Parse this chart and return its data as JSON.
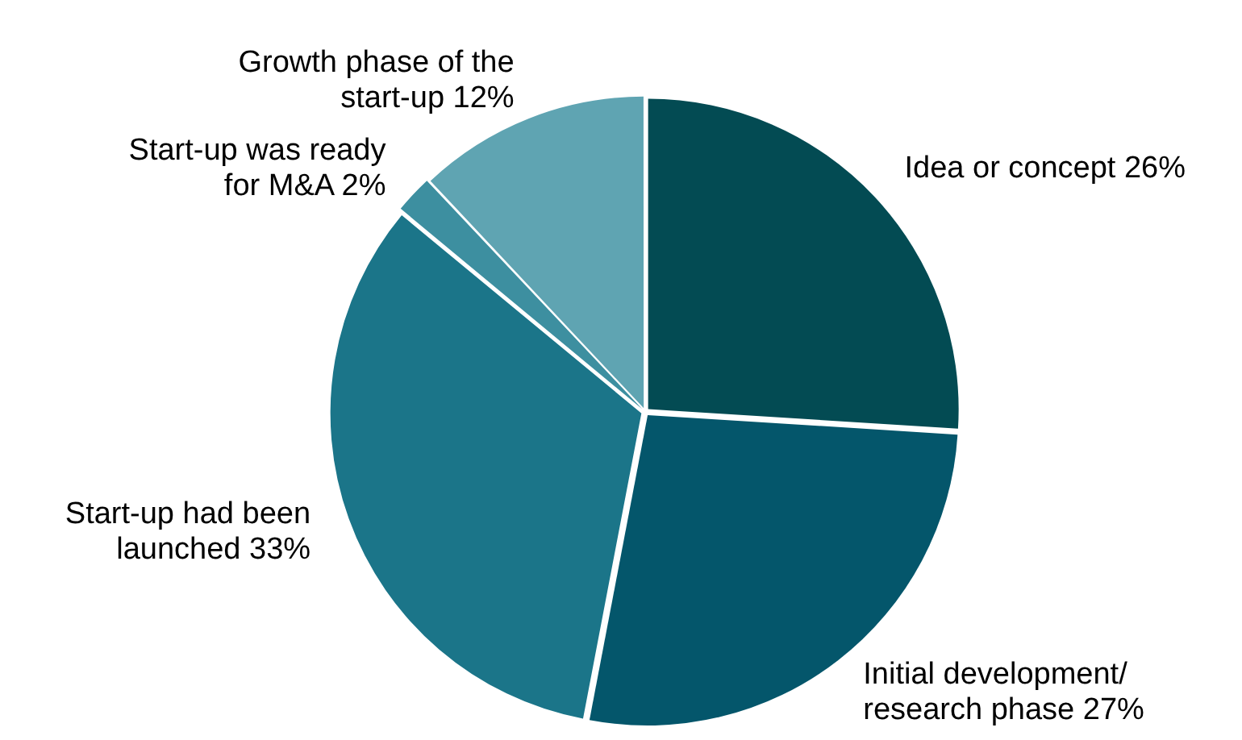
{
  "chart_data": {
    "type": "pie",
    "categories": [
      "Idea or concept",
      "Initial development/\nresearch phase",
      "Start-up had been\nlaunched",
      "Start-up was ready\nfor M&A",
      "Growth phase of the\nstart-up"
    ],
    "values": [
      26,
      27,
      33,
      2,
      12
    ],
    "colors": [
      "#034b53",
      "#04566b",
      "#1b7589",
      "#3d8fa0",
      "#5fa4b2"
    ],
    "value_labels": [
      "26%",
      "27%",
      "33%",
      "2%",
      "12%"
    ],
    "legend": false
  }
}
